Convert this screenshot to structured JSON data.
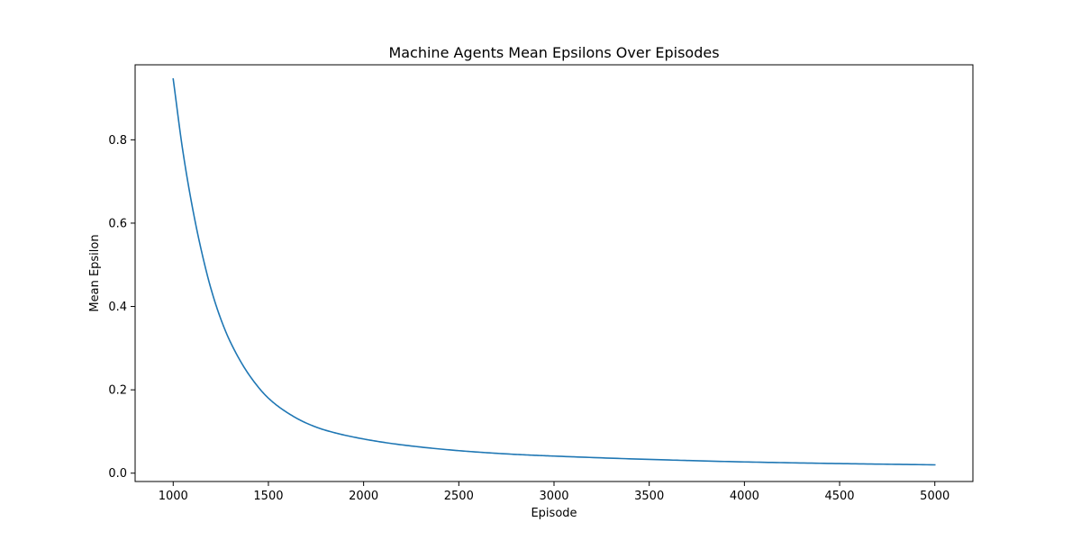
{
  "chart_data": {
    "type": "line",
    "title": "Machine Agents Mean Epsilons Over Episodes",
    "xlabel": "Episode",
    "ylabel": "Mean Epsilon",
    "xlim": [
      800,
      5200
    ],
    "ylim": [
      -0.02,
      0.98
    ],
    "xticks": [
      1000,
      1500,
      2000,
      2500,
      3000,
      3500,
      4000,
      4500,
      5000
    ],
    "xtick_labels": [
      "1000",
      "1500",
      "2000",
      "2500",
      "3000",
      "3500",
      "4000",
      "4500",
      "5000"
    ],
    "yticks": [
      0.0,
      0.2,
      0.4,
      0.6,
      0.8
    ],
    "ytick_labels": [
      "0.0",
      "0.2",
      "0.4",
      "0.6",
      "0.8"
    ],
    "grid": false,
    "legend": "none",
    "series": [
      {
        "color": "#1f77b4",
        "x": [
          1000,
          1050,
          1100,
          1150,
          1200,
          1250,
          1300,
          1400,
          1500,
          1600,
          1700,
          1800,
          2000,
          2200,
          2500,
          2800,
          3000,
          3500,
          4000,
          4500,
          5000
        ],
        "y": [
          0.946,
          0.775,
          0.64,
          0.53,
          0.44,
          0.37,
          0.315,
          0.235,
          0.18,
          0.145,
          0.12,
          0.103,
          0.082,
          0.068,
          0.054,
          0.045,
          0.041,
          0.033,
          0.027,
          0.023,
          0.02
        ]
      }
    ]
  }
}
